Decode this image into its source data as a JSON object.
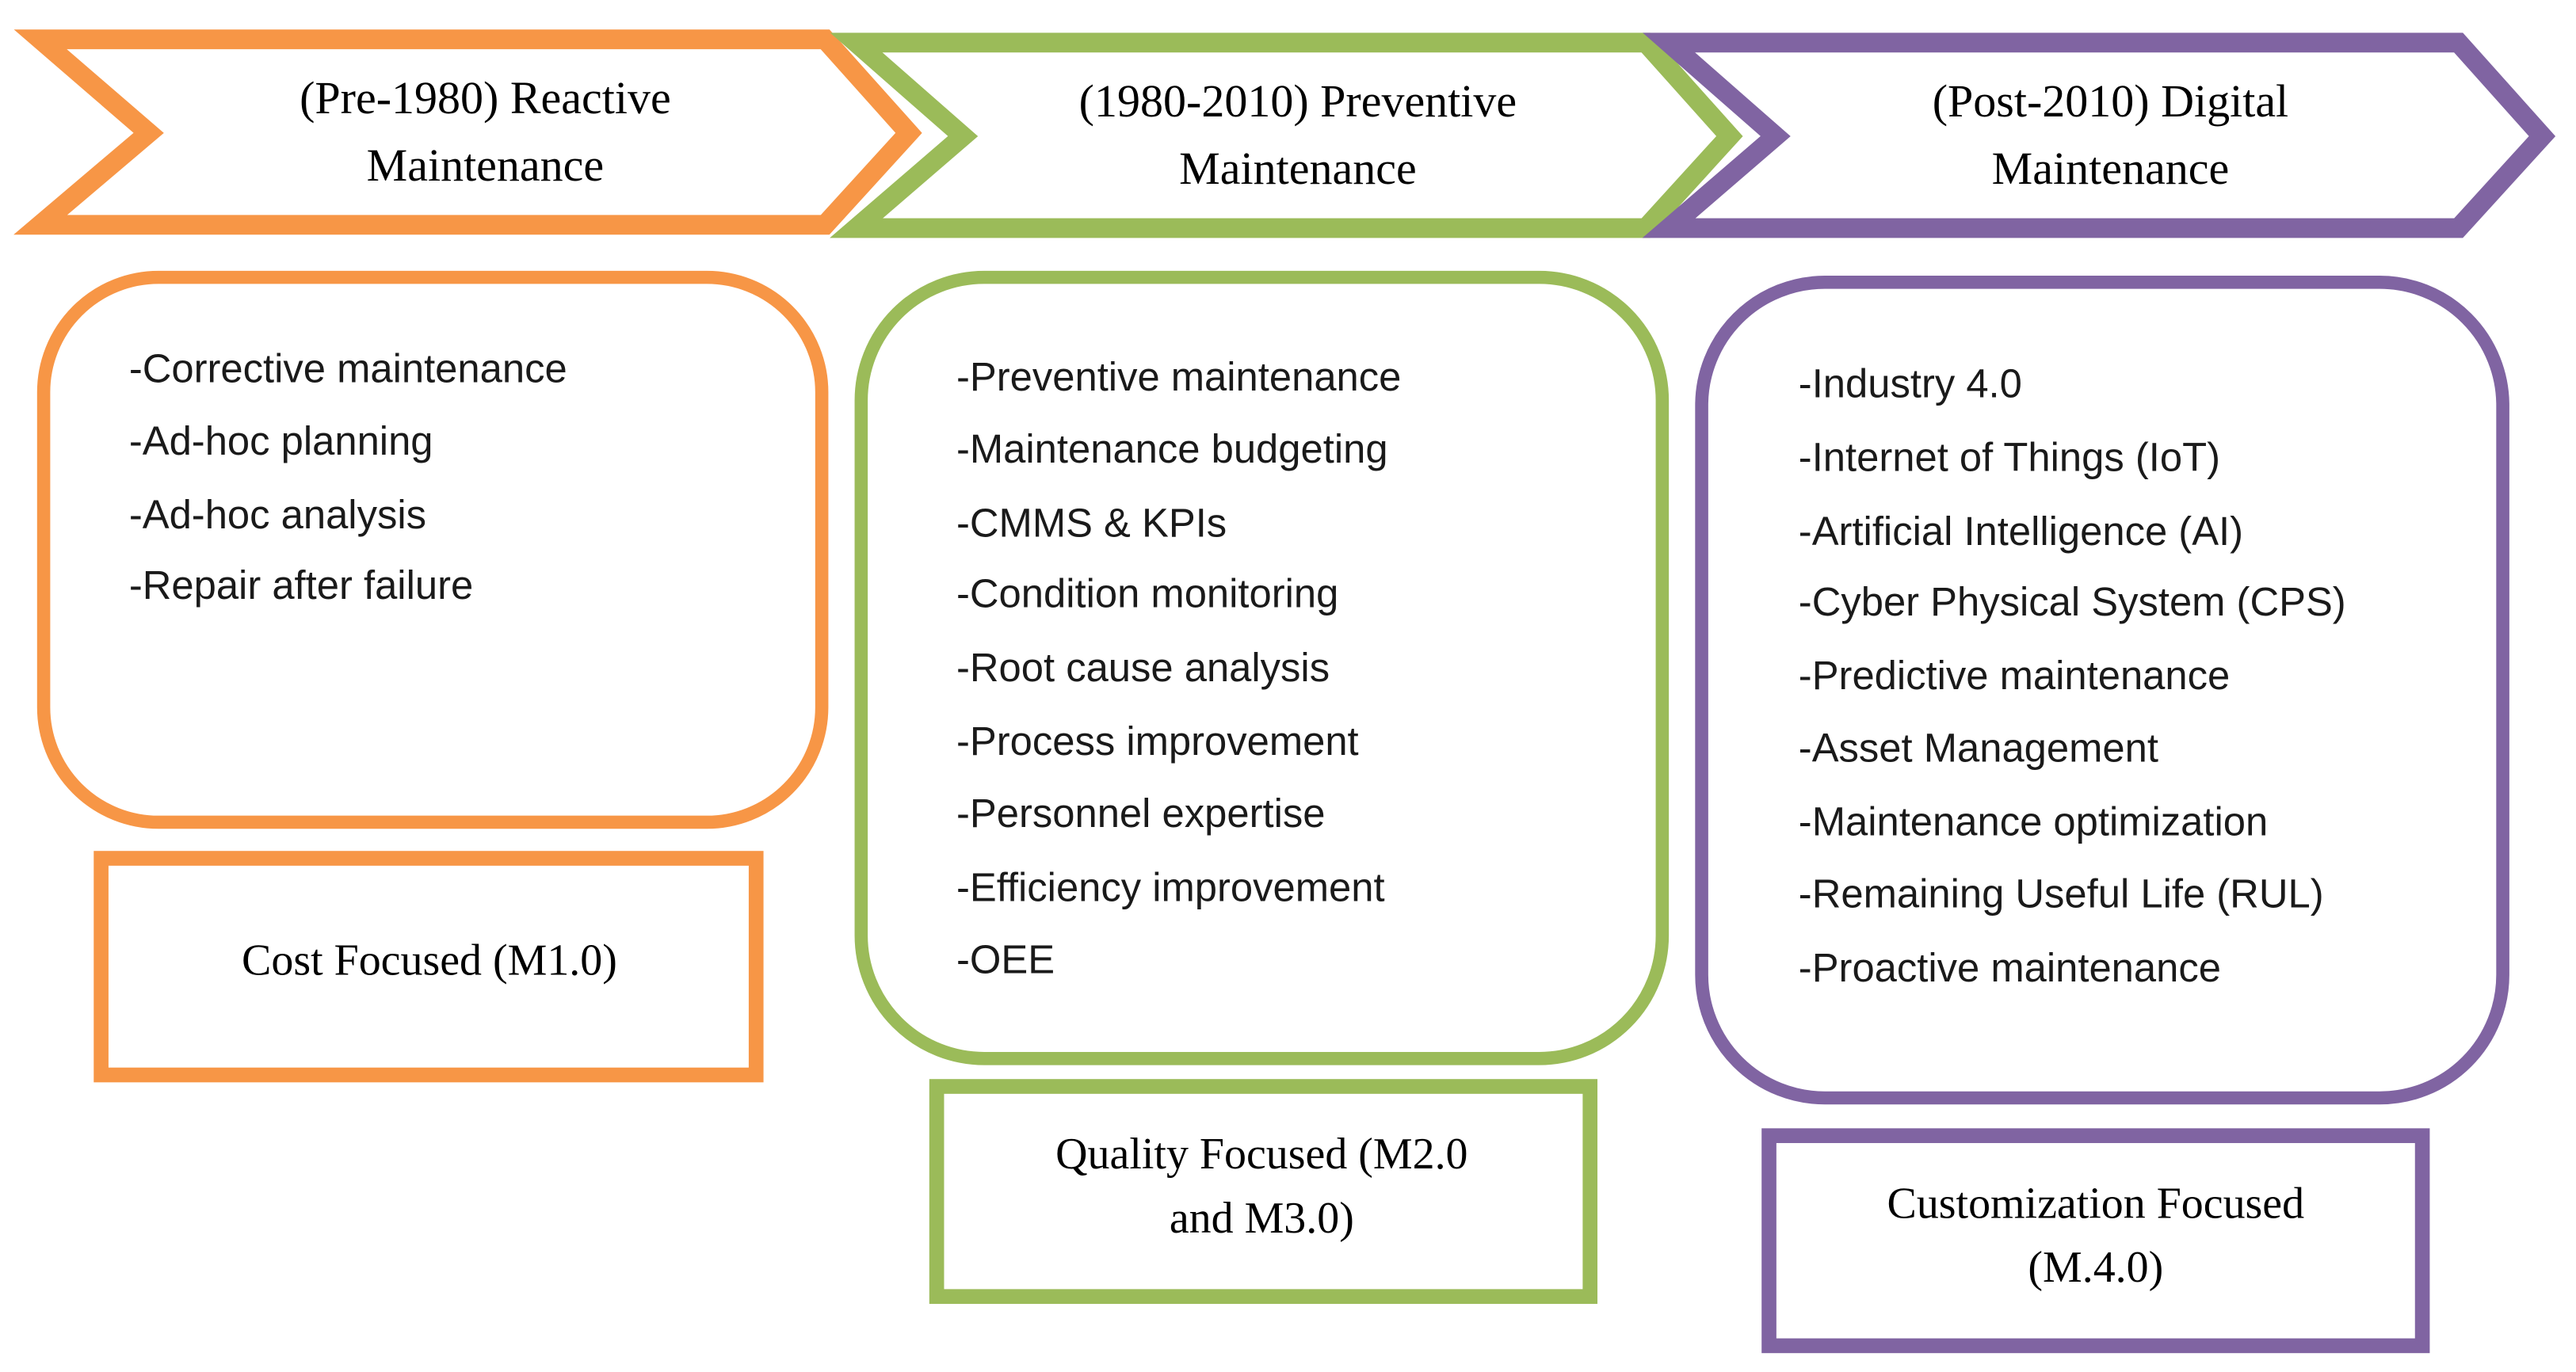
{
  "colors": {
    "reactive": "#F79646",
    "preventive": "#9BBB59",
    "digital": "#8064A2"
  },
  "eras": [
    {
      "header": [
        "(Pre-1980) Reactive",
        "Maintenance"
      ],
      "items": [
        "-Corrective maintenance",
        "-Ad-hoc planning",
        "-Ad-hoc analysis",
        "-Repair after failure"
      ],
      "focus": [
        "Cost Focused (M1.0)"
      ]
    },
    {
      "header": [
        "(1980-2010) Preventive",
        "Maintenance"
      ],
      "items": [
        "-Preventive maintenance",
        "-Maintenance budgeting",
        "-CMMS & KPIs",
        "-Condition monitoring",
        "-Root cause analysis",
        "-Process improvement",
        "-Personnel expertise",
        "-Efficiency improvement",
        "-OEE"
      ],
      "focus": [
        "Quality Focused (M2.0",
        "and M3.0)"
      ]
    },
    {
      "header": [
        "(Post-2010) Digital",
        "Maintenance"
      ],
      "items": [
        "-Industry 4.0",
        "-Internet of Things (IoT)",
        "-Artificial Intelligence (AI)",
        "-Cyber Physical System (CPS)",
        "-Predictive maintenance",
        "-Asset Management",
        "-Maintenance optimization",
        "-Remaining Useful Life (RUL)",
        "-Proactive maintenance"
      ],
      "focus": [
        "Customization Focused",
        "(M.4.0)"
      ]
    }
  ]
}
